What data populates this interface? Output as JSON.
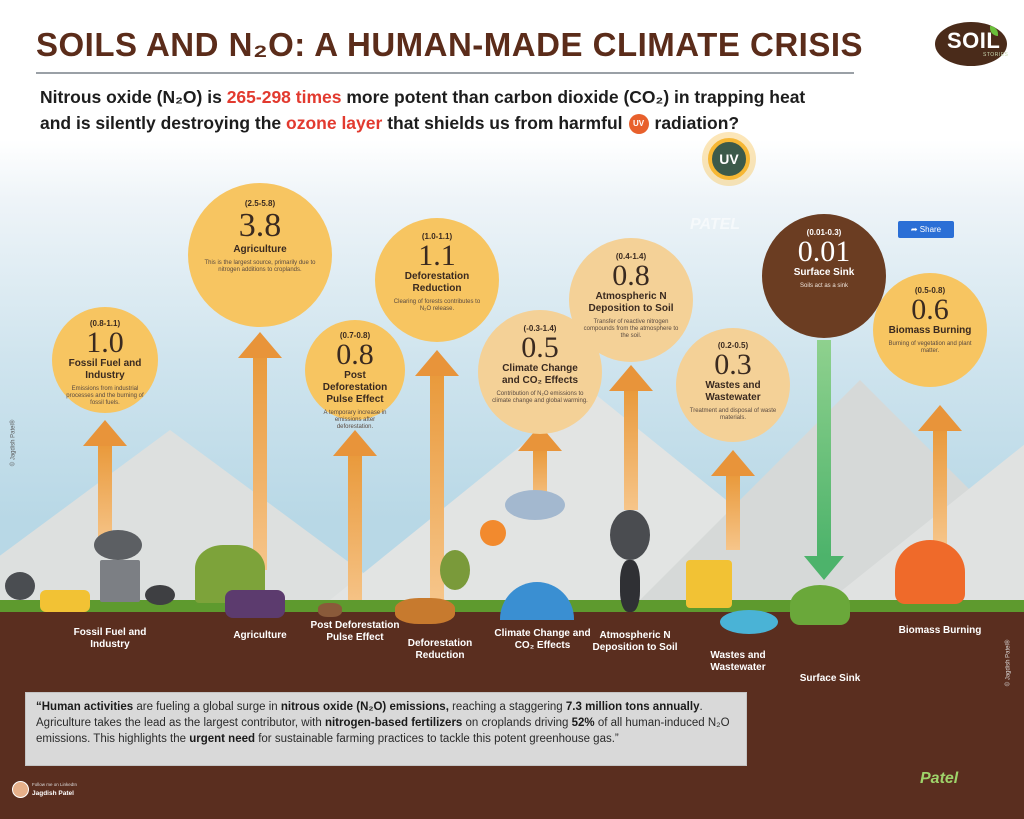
{
  "title": "SOILS AND N₂O: A HUMAN-MADE CLIMATE CRISIS",
  "logo": {
    "text": "SOIL",
    "sub": "STORIES"
  },
  "intro": {
    "line1_a": "Nitrous oxide (N₂O) is ",
    "line1_hl": "265-298 times",
    "line1_b": " more potent than carbon dioxide (CO₂) in trapping heat",
    "line2_a": "and is silently destroying the ",
    "line2_hl": "ozone layer",
    "line2_b": " that shields us from harmful",
    "line2_c": "radiation?",
    "uv_icon_text": "UV"
  },
  "sun_label": "UV",
  "share_button": "Share",
  "watermark": "PATEL",
  "sources": [
    {
      "range": "(0.8-1.1)",
      "value": "1.0",
      "name": "Fossil Fuel and Industry",
      "desc": "Emissions from industrial processes and the burning of fossil fuels.",
      "ground_label": "Fossil Fuel and Industry"
    },
    {
      "range": "(2.5-5.8)",
      "value": "3.8",
      "name": "Agriculture",
      "desc": "This is the largest source, primarily due to nitrogen additions to croplands.",
      "ground_label": "Agriculture"
    },
    {
      "range": "(0.7-0.8)",
      "value": "0.8",
      "name": "Post Deforestation Pulse Effect",
      "desc": "A temporary increase in emissions after deforestation.",
      "ground_label": "Post Deforestation Pulse Effect"
    },
    {
      "range": "(1.0-1.1)",
      "value": "1.1",
      "name": "Deforestation Reduction",
      "desc": "Clearing of forests contributes to N₂O release.",
      "ground_label": "Deforestation Reduction"
    },
    {
      "range": "(-0.3-1.4)",
      "value": "0.5",
      "name": "Climate Change and CO₂ Effects",
      "desc": "Contribution of N₂O emissions to climate change and global warming.",
      "ground_label": "Climate Change and CO₂ Effects"
    },
    {
      "range": "(0.4-1.4)",
      "value": "0.8",
      "name": "Atmospheric N Deposition to Soil",
      "desc": "Transfer of reactive nitrogen compounds from the atmosphere to the soil.",
      "ground_label": "Atmospheric N Deposition to Soil"
    },
    {
      "range": "(0.2-0.5)",
      "value": "0.3",
      "name": "Wastes and Wastewater",
      "desc": "Treatment and disposal of waste materials.",
      "ground_label": "Wastes and Wastewater"
    },
    {
      "range": "(0.01-0.3)",
      "value": "0.01",
      "name": "Surface Sink",
      "desc": "Soils act as a sink",
      "ground_label": "Surface Sink"
    },
    {
      "range": "(0.5-0.8)",
      "value": "0.6",
      "name": "Biomass Burning",
      "desc": "Burning of vegetation and plant matter.",
      "ground_label": "Biomass Burning"
    }
  ],
  "quote": {
    "p1": "“Human activities",
    "p2": " are fueling a global surge in ",
    "p3": "nitrous oxide (N₂O) emissions,",
    "p4": " reaching a staggering ",
    "p5": "7.3 million tons annually",
    "p6": ". Agriculture takes the lead as the largest contributor, with ",
    "p7": "nitrogen-based fertilizers",
    "p8": " on croplands driving ",
    "p9": "52%",
    "p10": " of all human-induced N₂O emissions. This highlights the ",
    "p11": "urgent need",
    "p12": " for sustainable farming practices to tackle this potent greenhouse gas.”"
  },
  "credits": {
    "follow": "Follow me on LinkedIn",
    "name": "Jagdish Patel",
    "copyright": "© Jagdish Patel®",
    "signature": "Patel"
  },
  "colors": {
    "title": "#5b2c1a",
    "highlight": "#e23a2f",
    "soil": "#5a2e1f",
    "arrow_up": "#e8943a",
    "arrow_down": "#4db36b",
    "sink_circle": "#6b3d22"
  }
}
